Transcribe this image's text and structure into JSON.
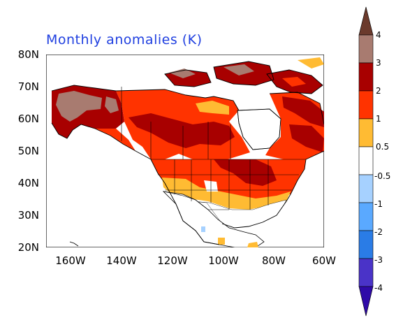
{
  "title": "Monthly anomalies (K)",
  "axes": {
    "lat_labels": [
      "80N",
      "70N",
      "60N",
      "50N",
      "40N",
      "30N",
      "20N"
    ],
    "lon_labels": [
      "160W",
      "140W",
      "120W",
      "100W",
      "80W",
      "60W"
    ]
  },
  "map": {
    "region": "North America",
    "lat_range": [
      20,
      80
    ],
    "lon_range": [
      -170,
      -60
    ],
    "projection": "latitude-longitude"
  },
  "colorbar": {
    "labels": [
      "4",
      "3",
      "2",
      "1",
      "0.5",
      "-0.5",
      "-1",
      "-2",
      "-3",
      "-4"
    ],
    "colors": [
      "#6b3a2c",
      "#a87b70",
      "#a80000",
      "#ff3300",
      "#ffbb33",
      "#ffffff",
      "#a6d1ff",
      "#5aa9ff",
      "#2a7ce6",
      "#1f55d4",
      "#4a33c8",
      "#2f0aa8"
    ]
  },
  "palette": {
    "title_color": "#1f3fe0",
    "water": "#ffffff",
    "land_outline": "#000000"
  }
}
